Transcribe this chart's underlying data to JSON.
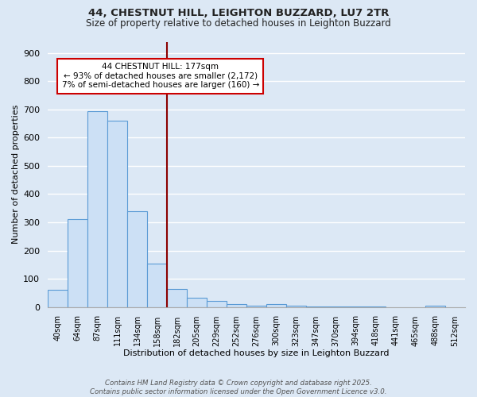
{
  "title1": "44, CHESTNUT HILL, LEIGHTON BUZZARD, LU7 2TR",
  "title2": "Size of property relative to detached houses in Leighton Buzzard",
  "xlabel": "Distribution of detached houses by size in Leighton Buzzard",
  "ylabel": "Number of detached properties",
  "bin_labels": [
    "40sqm",
    "64sqm",
    "87sqm",
    "111sqm",
    "134sqm",
    "158sqm",
    "182sqm",
    "205sqm",
    "229sqm",
    "252sqm",
    "276sqm",
    "300sqm",
    "323sqm",
    "347sqm",
    "370sqm",
    "394sqm",
    "418sqm",
    "441sqm",
    "465sqm",
    "488sqm",
    "512sqm"
  ],
  "bar_values": [
    60,
    312,
    693,
    659,
    338,
    155,
    65,
    33,
    22,
    10,
    5,
    10,
    5,
    3,
    3,
    3,
    3,
    0,
    0,
    5,
    0
  ],
  "bar_color": "#cce0f5",
  "bar_edge_color": "#5b9bd5",
  "vline_color": "#8b0000",
  "annotation_text": "44 CHESTNUT HILL: 177sqm\n← 93% of detached houses are smaller (2,172)\n7% of semi-detached houses are larger (160) →",
  "annotation_box_color": "#ffffff",
  "annotation_box_edge": "#cc0000",
  "ylim": [
    0,
    940
  ],
  "yticks": [
    0,
    100,
    200,
    300,
    400,
    500,
    600,
    700,
    800,
    900
  ],
  "footer": "Contains HM Land Registry data © Crown copyright and database right 2025.\nContains public sector information licensed under the Open Government Licence v3.0.",
  "bg_color": "#dce8f5",
  "grid_color": "#ffffff"
}
